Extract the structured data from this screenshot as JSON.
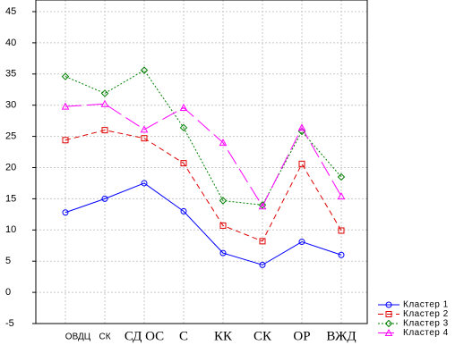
{
  "chart_data": {
    "type": "line",
    "categories": [
      "ОВДЦ",
      "СК",
      "СД ОС",
      "С",
      "КК",
      "СК",
      "ОР",
      "ВЖД"
    ],
    "series": [
      {
        "name": "Кластер  1",
        "color": "#0000ff",
        "values": [
          12.8,
          15,
          17.5,
          13,
          6.3,
          4.4,
          8.1,
          6
        ]
      },
      {
        "name": "Кластер  2",
        "color": "#e00000",
        "values": [
          24.4,
          26,
          24.7,
          20.7,
          10.7,
          8.2,
          20.6,
          9.9
        ]
      },
      {
        "name": "Кластер  3",
        "color": "#008000",
        "values": [
          34.6,
          31.9,
          35.6,
          26.4,
          14.7,
          14,
          25.8,
          18.5
        ]
      },
      {
        "name": "Кластер  4",
        "color": "#ff00ff",
        "values": [
          29.8,
          30.2,
          26.1,
          29.6,
          24,
          13.8,
          26.4,
          15.4
        ]
      }
    ],
    "ylim": [
      -5,
      45
    ],
    "yticks": [
      -5,
      0,
      5,
      10,
      15,
      20,
      25,
      30,
      35,
      40,
      45
    ],
    "grid": true,
    "legend": "lower right"
  }
}
